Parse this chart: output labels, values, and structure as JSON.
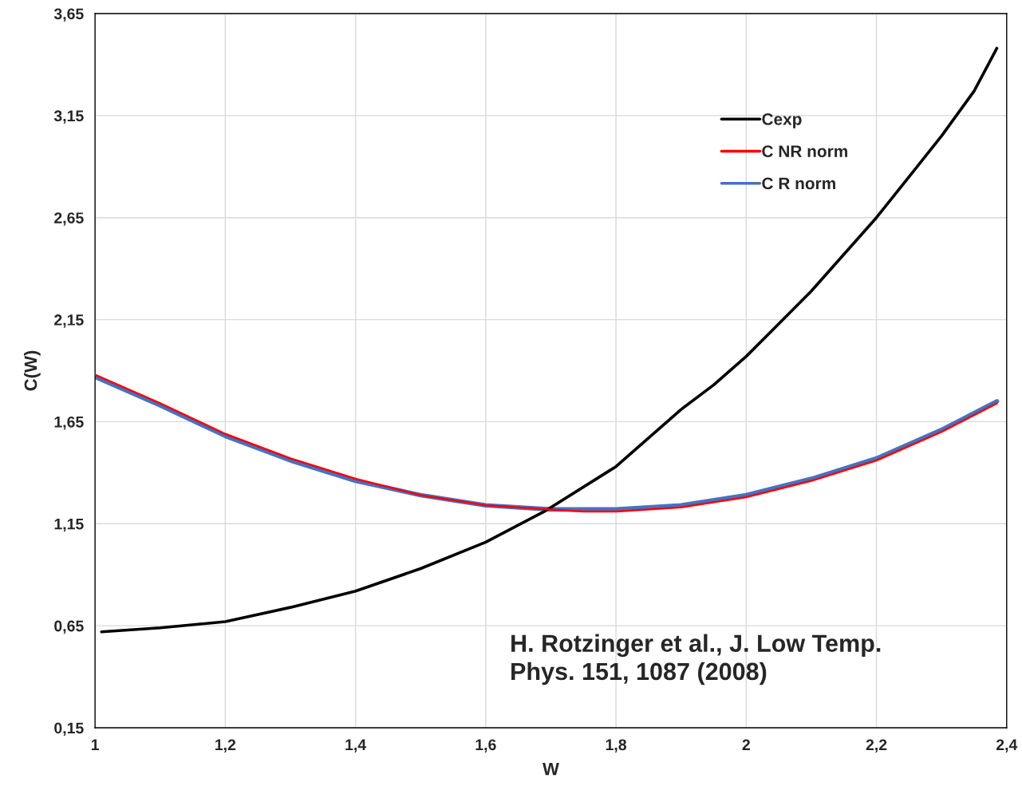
{
  "chart_data": {
    "type": "line",
    "xlabel": "W",
    "ylabel": "C(W)",
    "xlim": [
      1,
      2.4
    ],
    "ylim": [
      0.15,
      3.65
    ],
    "xticks": [
      1,
      {
        "value": 1.2,
        "label": "1,2"
      },
      {
        "value": 1.4,
        "label": "1,4"
      },
      {
        "value": 1.6,
        "label": "1,6"
      },
      {
        "value": 1.8,
        "label": "1,8"
      },
      2,
      {
        "value": 2.2,
        "label": "2,2"
      },
      {
        "value": 2.4,
        "label": "2,4"
      }
    ],
    "yticks": [
      {
        "value": 0.15,
        "label": "0,15"
      },
      {
        "value": 0.65,
        "label": "0,65"
      },
      {
        "value": 1.15,
        "label": "1,15"
      },
      {
        "value": 1.65,
        "label": "1,65"
      },
      {
        "value": 2.15,
        "label": "2,15"
      },
      {
        "value": 2.65,
        "label": "2,65"
      },
      {
        "value": 3.15,
        "label": "3,15"
      },
      {
        "value": 3.65,
        "label": "3,65"
      }
    ],
    "grid": true,
    "legend": "top right",
    "marker": "none",
    "line_style": "solid",
    "annotations": [
      "H. Rotzinger et al., J. Low Temp.\nPhys. 151, 1087 (2008)"
    ],
    "series": [
      {
        "name": "Cexp",
        "color": "#000000",
        "x": [
          1.01,
          1.1,
          1.2,
          1.3,
          1.4,
          1.5,
          1.6,
          1.69,
          1.8,
          1.9,
          1.95,
          2.0,
          2.05,
          2.1,
          2.15,
          2.2,
          2.25,
          2.3,
          2.35,
          2.385
        ],
        "values": [
          0.62,
          0.64,
          0.67,
          0.74,
          0.82,
          0.93,
          1.06,
          1.21,
          1.43,
          1.71,
          1.83,
          1.97,
          2.13,
          2.29,
          2.47,
          2.65,
          2.85,
          3.05,
          3.27,
          3.48
        ]
      },
      {
        "name": "C NR norm",
        "color": "#ff0000",
        "x": [
          1.0,
          1.1,
          1.2,
          1.3,
          1.4,
          1.5,
          1.6,
          1.7,
          1.75,
          1.8,
          1.9,
          2.0,
          2.1,
          2.2,
          2.3,
          2.385
        ],
        "values": [
          1.88,
          1.74,
          1.59,
          1.47,
          1.37,
          1.29,
          1.24,
          1.22,
          1.21,
          1.21,
          1.23,
          1.28,
          1.36,
          1.46,
          1.6,
          1.74
        ]
      },
      {
        "name": "C R norm",
        "color": "#4472c4",
        "x": [
          1.0,
          1.1,
          1.2,
          1.3,
          1.4,
          1.5,
          1.6,
          1.7,
          1.75,
          1.8,
          1.9,
          2.0,
          2.1,
          2.2,
          2.3,
          2.385
        ],
        "values": [
          1.87,
          1.73,
          1.58,
          1.46,
          1.36,
          1.29,
          1.24,
          1.22,
          1.22,
          1.22,
          1.24,
          1.29,
          1.37,
          1.47,
          1.61,
          1.75
        ]
      }
    ]
  }
}
